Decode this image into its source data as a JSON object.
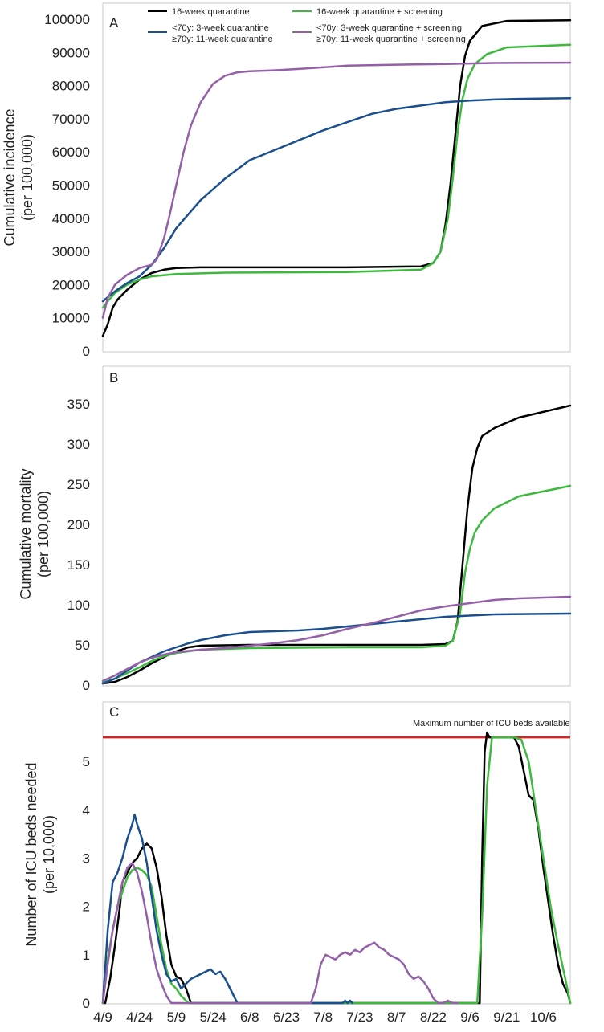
{
  "colors": {
    "16w": "#000000",
    "16ws": "#3dba3d",
    "split": "#1a4f8f",
    "splits": "#9460a8",
    "icu_line": "#e02020",
    "axis": "#999999"
  },
  "legend": [
    {
      "key": "16w",
      "label": "16-week quarantine"
    },
    {
      "key": "16ws",
      "label": "16-week quarantine  + screening"
    },
    {
      "key": "split",
      "label_line1": "<70y: 3-week quarantine",
      "label_line2": "≥70y: 11-week quarantine"
    },
    {
      "key": "splits",
      "label_line1": "<70y: 3-week quarantine + screening",
      "label_line2": "≥70y: 11-week quarantine + screening"
    }
  ],
  "chart_data": [
    {
      "panel": "A",
      "type": "line",
      "ylabel": "Cumulative incidence (per 100,000)",
      "ylabel_line1": "Cumulative incidence",
      "ylabel_line2": "(per 100,000)",
      "ylim": [
        0,
        100000
      ],
      "yticks": [
        "0",
        "10000",
        "20000",
        "30000",
        "40000",
        "50000",
        "60000",
        "70000",
        "80000",
        "90000",
        "100000"
      ],
      "x_unit": "days since 4/9",
      "xlim": [
        0,
        191
      ],
      "series": [
        {
          "key": "16w",
          "name": "16-week quarantine",
          "x": [
            0,
            2,
            4,
            6,
            10,
            15,
            20,
            25,
            30,
            40,
            60,
            100,
            130,
            135,
            138,
            140,
            142,
            144,
            146,
            148,
            150,
            155,
            165,
            191
          ],
          "y": [
            4500,
            8000,
            13000,
            15500,
            18500,
            21500,
            23500,
            24500,
            25000,
            25200,
            25200,
            25200,
            25500,
            26500,
            30000,
            38000,
            50000,
            65000,
            80000,
            89000,
            93500,
            98000,
            99500,
            99700
          ]
        },
        {
          "key": "16ws",
          "name": "16-week quarantine  + screening",
          "x": [
            0,
            2,
            5,
            10,
            15,
            20,
            30,
            50,
            100,
            130,
            135,
            138,
            141,
            143,
            145,
            147,
            149,
            152,
            157,
            165,
            191
          ],
          "y": [
            13000,
            15000,
            17500,
            20000,
            21500,
            22500,
            23200,
            23600,
            23800,
            24500,
            26500,
            30000,
            40000,
            52000,
            66000,
            76000,
            82000,
            86500,
            89500,
            91500,
            92300
          ]
        },
        {
          "key": "split",
          "name": "<70y: 3-week quarantine + ≥70y: 11-week quarantine",
          "x": [
            0,
            5,
            10,
            15,
            20,
            25,
            30,
            40,
            50,
            60,
            70,
            80,
            90,
            100,
            110,
            120,
            130,
            140,
            150,
            160,
            170,
            191
          ],
          "y": [
            15000,
            18000,
            20500,
            22500,
            26000,
            31000,
            37000,
            45500,
            52000,
            57500,
            60500,
            63500,
            66500,
            69000,
            71500,
            73000,
            74000,
            75000,
            75500,
            75800,
            76000,
            76200
          ]
        },
        {
          "key": "splits",
          "name": "<70y: 3-week quarantine + screening + ≥70y: 11-week quarantine + screening",
          "x": [
            0,
            2,
            5,
            10,
            15,
            20,
            22,
            25,
            27,
            30,
            33,
            36,
            40,
            45,
            50,
            55,
            60,
            70,
            80,
            90,
            100,
            120,
            140,
            160,
            191
          ],
          "y": [
            10000,
            16000,
            20000,
            23000,
            25000,
            26000,
            27500,
            34000,
            40000,
            50000,
            60000,
            68000,
            75000,
            80500,
            83000,
            84000,
            84300,
            84600,
            85000,
            85500,
            86000,
            86300,
            86500,
            86800,
            86900
          ]
        }
      ]
    },
    {
      "panel": "B",
      "type": "line",
      "ylabel": "Cumulative mortality (per 100,000)",
      "ylabel_line1": "Cumulative mortality",
      "ylabel_line2": "(per 100,000)",
      "ylim": [
        0,
        380
      ],
      "yticks": [
        "0",
        "50",
        "100",
        "150",
        "200",
        "250",
        "300",
        "350"
      ],
      "x_unit": "days since 4/9",
      "xlim": [
        0,
        191
      ],
      "series": [
        {
          "key": "16w",
          "name": "16-week quarantine",
          "x": [
            0,
            5,
            10,
            15,
            20,
            25,
            30,
            35,
            40,
            60,
            100,
            130,
            140,
            143,
            145,
            147,
            149,
            151,
            153,
            155,
            160,
            170,
            191
          ],
          "y": [
            2,
            4,
            10,
            18,
            27,
            35,
            42,
            47,
            49,
            50,
            50,
            50,
            51,
            55,
            80,
            150,
            220,
            270,
            295,
            310,
            320,
            333,
            348
          ]
        },
        {
          "key": "16ws",
          "name": "16-week quarantine  + screening",
          "x": [
            0,
            5,
            10,
            15,
            20,
            25,
            30,
            40,
            60,
            100,
            130,
            140,
            143,
            146,
            148,
            150,
            152,
            155,
            160,
            170,
            191
          ],
          "y": [
            3,
            8,
            15,
            22,
            30,
            36,
            40,
            44,
            46,
            47,
            47,
            49,
            55,
            90,
            140,
            170,
            190,
            205,
            220,
            235,
            248
          ]
        },
        {
          "key": "split",
          "name": "<70y: 3-week quarantine + ≥70y: 11-week quarantine",
          "x": [
            0,
            5,
            10,
            15,
            20,
            25,
            30,
            35,
            40,
            50,
            60,
            70,
            80,
            90,
            100,
            120,
            140,
            160,
            191
          ],
          "y": [
            2,
            8,
            18,
            28,
            35,
            42,
            47,
            52,
            56,
            62,
            66,
            67,
            68,
            70,
            73,
            79,
            85,
            88,
            89
          ]
        },
        {
          "key": "splits",
          "name": "<70y: 3-week quarantine + screening + ≥70y: 11-week quarantine + screening",
          "x": [
            0,
            5,
            10,
            15,
            20,
            25,
            30,
            40,
            50,
            60,
            70,
            80,
            90,
            100,
            110,
            120,
            130,
            140,
            150,
            160,
            170,
            191
          ],
          "y": [
            5,
            12,
            20,
            28,
            34,
            38,
            41,
            44,
            46,
            49,
            52,
            56,
            62,
            70,
            77,
            85,
            93,
            98,
            102,
            106,
            108,
            110
          ]
        }
      ]
    },
    {
      "panel": "C",
      "type": "line",
      "ylabel": "Number of ICU beds needed (per 10,000)",
      "ylabel_line1": "Number of ICU beds needed",
      "ylabel_line2": "(per 10,000)",
      "ylim": [
        0,
        6
      ],
      "yticks": [
        "0",
        "1",
        "2",
        "3",
        "4",
        "5"
      ],
      "xlabels": [
        "4/9",
        "4/24",
        "5/9",
        "5/24",
        "6/8",
        "6/23",
        "7/8",
        "7/23",
        "8/7",
        "8/22",
        "9/6",
        "9/21",
        "10/6"
      ],
      "xlabel_days": [
        0,
        15,
        30,
        45,
        60,
        75,
        90,
        105,
        120,
        135,
        150,
        165,
        180
      ],
      "x_unit": "days since 4/9",
      "xlim": [
        0,
        191
      ],
      "annotation": "Maximum number of ICU beds available",
      "icu_max": 5.5,
      "series": [
        {
          "key": "16w",
          "name": "16-week quarantine",
          "x": [
            1,
            3,
            5,
            7,
            8,
            10,
            12,
            14,
            16,
            18,
            20,
            22,
            24,
            26,
            28,
            30,
            32,
            34,
            36,
            154,
            155,
            156,
            157,
            158,
            160,
            162,
            164,
            166,
            168,
            170,
            172,
            174,
            176,
            178,
            180,
            182,
            184,
            186,
            188,
            190,
            191
          ],
          "y": [
            0,
            0.5,
            1.2,
            2,
            2.5,
            2.7,
            2.9,
            3.0,
            3.2,
            3.3,
            3.2,
            2.8,
            2.2,
            1.4,
            0.8,
            0.55,
            0.5,
            0.3,
            0,
            0,
            3.0,
            5.2,
            5.6,
            5.5,
            5.5,
            5.5,
            5.5,
            5.5,
            5.5,
            5.3,
            4.8,
            4.3,
            4.2,
            3.6,
            2.8,
            2.1,
            1.4,
            0.8,
            0.4,
            0.2,
            0
          ]
        },
        {
          "key": "16ws",
          "name": "16-week quarantine  + screening",
          "x": [
            0,
            2,
            4,
            6,
            8,
            10,
            12,
            14,
            16,
            18,
            20,
            22,
            24,
            26,
            28,
            30,
            32,
            34,
            35,
            153,
            155,
            157,
            159,
            162,
            165,
            168,
            171,
            174,
            177,
            180,
            183,
            186,
            189,
            191
          ],
          "y": [
            0,
            0.9,
            1.5,
            2.0,
            2.3,
            2.6,
            2.75,
            2.8,
            2.75,
            2.65,
            2.4,
            1.8,
            1.2,
            0.7,
            0.4,
            0.3,
            0.15,
            0.05,
            0,
            0,
            1.8,
            4.5,
            5.5,
            5.5,
            5.5,
            5.5,
            5.45,
            5.0,
            4.0,
            3.0,
            2.0,
            1.2,
            0.5,
            0
          ]
        },
        {
          "key": "split",
          "name": "<70y: 3-week quarantine + ≥70y: 11-week quarantine",
          "x": [
            0,
            2,
            4,
            6,
            8,
            10,
            12,
            13,
            14,
            16,
            18,
            20,
            22,
            24,
            26,
            28,
            30,
            32,
            34,
            36,
            38,
            40,
            42,
            44,
            46,
            48,
            50,
            52,
            54,
            55,
            98,
            99,
            100,
            101,
            102
          ],
          "y": [
            0,
            1.5,
            2.5,
            2.7,
            3.0,
            3.4,
            3.7,
            3.9,
            3.7,
            3.4,
            2.9,
            2.2,
            1.5,
            1.0,
            0.6,
            0.45,
            0.5,
            0.3,
            0.4,
            0.5,
            0.55,
            0.6,
            0.65,
            0.7,
            0.6,
            0.65,
            0.5,
            0.3,
            0.1,
            0,
            0,
            0.05,
            0,
            0.05,
            0
          ]
        },
        {
          "key": "splits",
          "name": "<70y: 3-week quarantine + screening + ≥70y: 11-week quarantine + screening",
          "x": [
            0,
            2,
            4,
            6,
            8,
            10,
            12,
            14,
            16,
            18,
            20,
            22,
            24,
            26,
            28,
            85,
            87,
            89,
            91,
            93,
            95,
            97,
            99,
            101,
            103,
            105,
            107,
            109,
            111,
            113,
            115,
            117,
            119,
            121,
            123,
            125,
            127,
            129,
            131,
            133,
            135,
            137,
            139,
            141,
            143,
            145
          ],
          "y": [
            0,
            0.8,
            1.5,
            2.0,
            2.5,
            2.8,
            2.9,
            2.7,
            2.3,
            1.8,
            1.2,
            0.7,
            0.4,
            0.15,
            0,
            0,
            0.3,
            0.8,
            1.0,
            0.95,
            0.9,
            1.0,
            1.05,
            1.0,
            1.1,
            1.05,
            1.15,
            1.2,
            1.25,
            1.15,
            1.1,
            1.0,
            0.95,
            0.9,
            0.8,
            0.6,
            0.5,
            0.55,
            0.45,
            0.3,
            0.1,
            0,
            0,
            0.05,
            0,
            0
          ]
        }
      ]
    }
  ]
}
